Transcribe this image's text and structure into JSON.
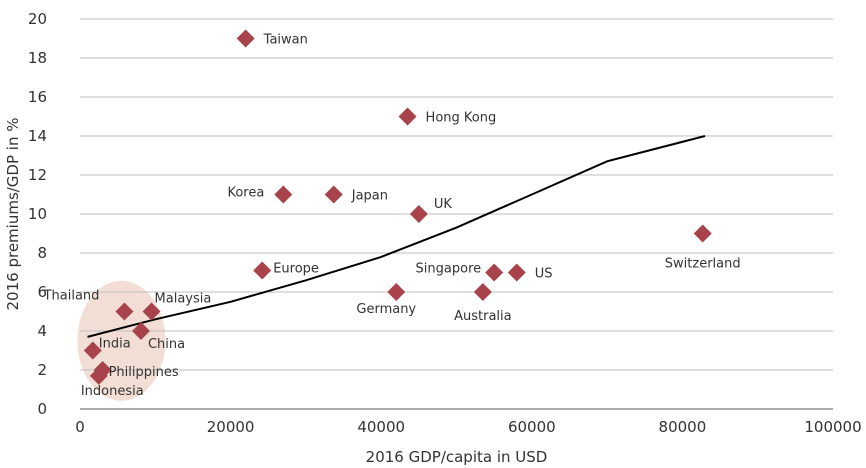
{
  "chart_data": {
    "type": "scatter",
    "title": "",
    "xlabel": "2016 GDP/capita in USD",
    "ylabel": "2016 premiums/GDP in %",
    "xlim": [
      0,
      100000
    ],
    "ylim": [
      0,
      20
    ],
    "x_ticks": [
      "0",
      "20000",
      "40000",
      "60000",
      "80000",
      "100000"
    ],
    "y_ticks": [
      "0",
      "2",
      "4",
      "6",
      "8",
      "10",
      "12",
      "14",
      "16",
      "18",
      "20"
    ],
    "grid": "horizontal",
    "marker_color": "#a8434b",
    "trend_color": "#000000",
    "highlight_color": "#f2ded4",
    "points": [
      {
        "label": "Taiwan",
        "x": 22000,
        "y": 19
      },
      {
        "label": "Hong Kong",
        "x": 43500,
        "y": 15
      },
      {
        "label": "Korea",
        "x": 27000,
        "y": 11
      },
      {
        "label": "Japan",
        "x": 33700,
        "y": 11
      },
      {
        "label": "UK",
        "x": 45000,
        "y": 10
      },
      {
        "label": "Switzerland",
        "x": 82700,
        "y": 9
      },
      {
        "label": "Europe",
        "x": 24200,
        "y": 7.1
      },
      {
        "label": "Singapore",
        "x": 55000,
        "y": 7
      },
      {
        "label": "US",
        "x": 58000,
        "y": 7
      },
      {
        "label": "Germany",
        "x": 42000,
        "y": 6
      },
      {
        "label": "Australia",
        "x": 53500,
        "y": 6
      },
      {
        "label": "Thailand",
        "x": 5900,
        "y": 5
      },
      {
        "label": "Malaysia",
        "x": 9500,
        "y": 5
      },
      {
        "label": "China",
        "x": 8100,
        "y": 4
      },
      {
        "label": "India",
        "x": 1700,
        "y": 3
      },
      {
        "label": "Philippines",
        "x": 3000,
        "y": 2
      },
      {
        "label": "Indonesia",
        "x": 2500,
        "y": 1.7
      }
    ],
    "trendline": {
      "x": [
        1000,
        10000,
        20000,
        30000,
        40000,
        50000,
        60000,
        70000,
        83000
      ],
      "y": [
        3.7,
        4.6,
        5.5,
        6.6,
        7.8,
        9.3,
        11.0,
        12.7,
        14
      ]
    }
  }
}
